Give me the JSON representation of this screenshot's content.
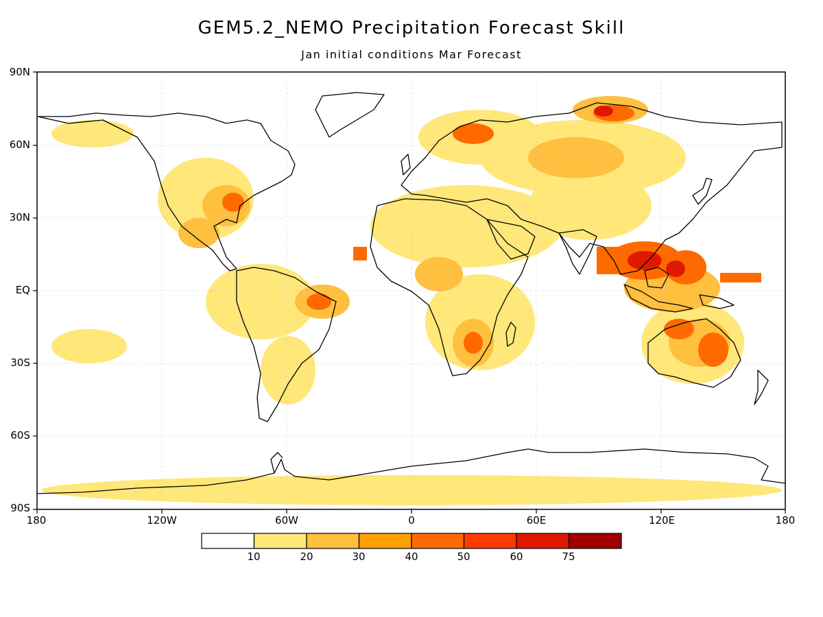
{
  "title": "GEM5.2_NEMO Precipitation Forecast Skill",
  "subtitle": "Jan initial conditions   Mar Forecast",
  "lat_labels": [
    "90N",
    "60N",
    "30N",
    "EQ",
    "30S",
    "60S",
    "90S"
  ],
  "lon_labels": [
    "180",
    "120W",
    "60W",
    "0",
    "60E",
    "120E",
    "180"
  ],
  "colorbar": {
    "labels": [
      "10",
      "20",
      "30",
      "40",
      "50",
      "60",
      "75"
    ],
    "colors": [
      "#ffffff",
      "#ffe77a",
      "#ffbf3f",
      "#ffa000",
      "#ff6a00",
      "#ff3a00",
      "#e01800",
      "#a00000"
    ]
  },
  "colors": {
    "coast": "#000000",
    "grid": "#bbbbbb"
  }
}
